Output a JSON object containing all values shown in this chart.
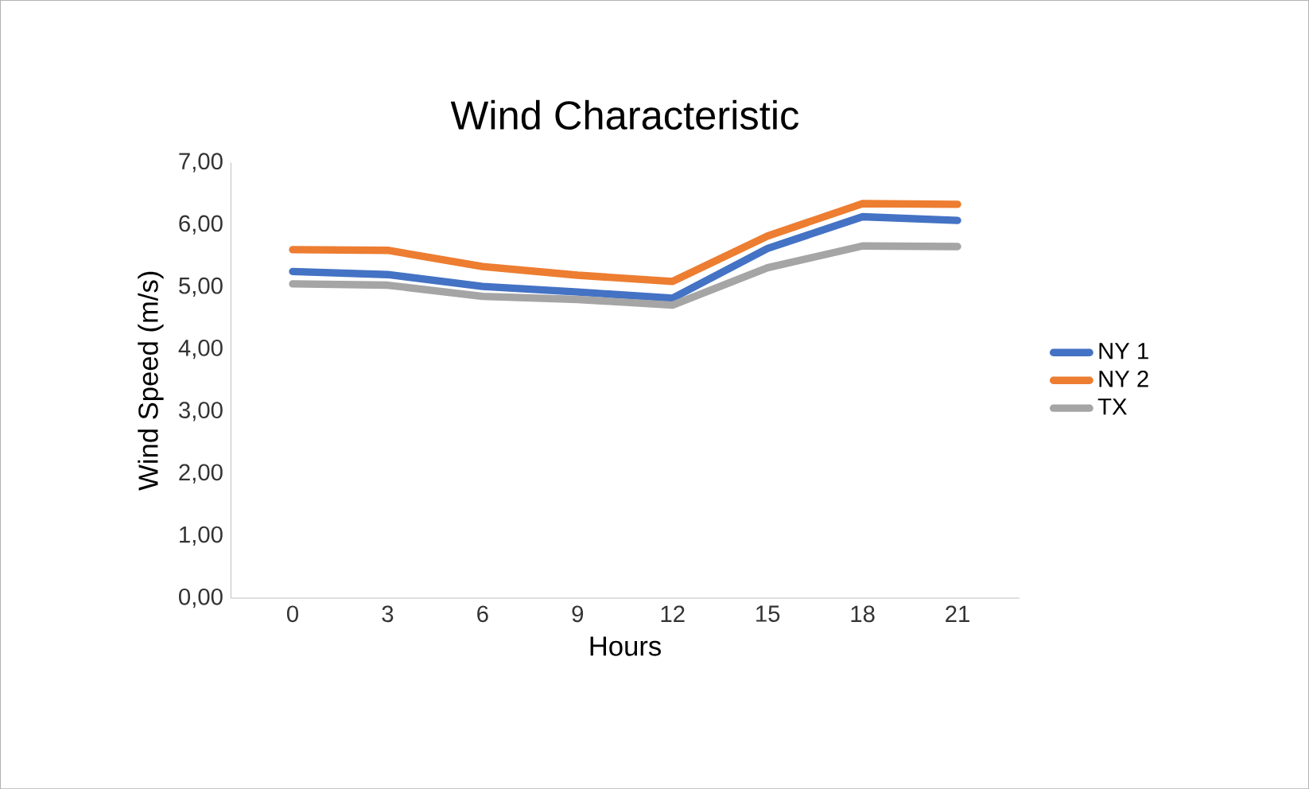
{
  "chart_data": {
    "type": "line",
    "title": "Wind Characteristic",
    "xlabel": "Hours",
    "ylabel": "Wind Speed (m/s)",
    "categories": [
      "0",
      "3",
      "6",
      "9",
      "12",
      "15",
      "18",
      "21"
    ],
    "series": [
      {
        "name": "NY 1",
        "color": "#4472c4",
        "values": [
          5.25,
          5.2,
          5.01,
          4.92,
          4.82,
          5.62,
          6.13,
          6.07
        ]
      },
      {
        "name": "NY 2",
        "color": "#ed7d31",
        "values": [
          5.6,
          5.59,
          5.33,
          5.19,
          5.09,
          5.82,
          6.34,
          6.33
        ]
      },
      {
        "name": "TX",
        "color": "#a5a5a5",
        "values": [
          5.05,
          5.03,
          4.85,
          4.8,
          4.71,
          5.31,
          5.66,
          5.65
        ]
      }
    ],
    "ylim": [
      0,
      7
    ],
    "yticks": [
      {
        "value": 0,
        "label": "0,00"
      },
      {
        "value": 1,
        "label": "1,00"
      },
      {
        "value": 2,
        "label": "2,00"
      },
      {
        "value": 3,
        "label": "3,00"
      },
      {
        "value": 4,
        "label": "4,00"
      },
      {
        "value": 5,
        "label": "5,00"
      },
      {
        "value": 6,
        "label": "6,00"
      },
      {
        "value": 7,
        "label": "7,00"
      }
    ],
    "legend": "right",
    "grid": false,
    "marker": "none",
    "line_style": "solid"
  }
}
